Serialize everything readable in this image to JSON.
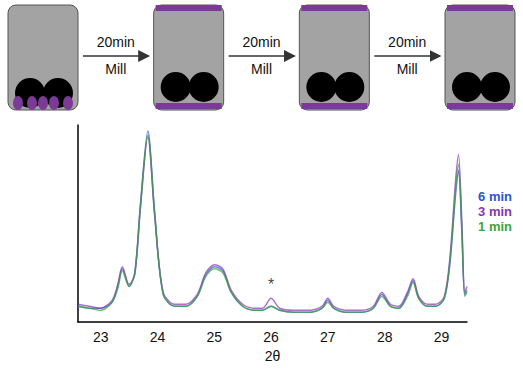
{
  "diagram": {
    "steps": [
      {
        "time": "20min",
        "action": "Mill"
      },
      {
        "time": "20min",
        "action": "Mill"
      },
      {
        "time": "20min",
        "action": "Mill"
      }
    ]
  },
  "chart_data": {
    "type": "line",
    "x_label": "2θ",
    "x": [
      22.6,
      22.8,
      23.0,
      23.2,
      23.3,
      23.38,
      23.5,
      23.6,
      23.7,
      23.83,
      23.95,
      24.1,
      24.3,
      24.5,
      24.7,
      24.85,
      25.0,
      25.15,
      25.3,
      25.5,
      25.7,
      25.85,
      26.0,
      26.15,
      26.4,
      26.7,
      26.9,
      27.0,
      27.1,
      27.3,
      27.6,
      27.8,
      27.95,
      28.1,
      28.25,
      28.4,
      28.5,
      28.6,
      28.75,
      28.9,
      29.05,
      29.15,
      29.25,
      29.3,
      29.36,
      29.41,
      29.45
    ],
    "series": [
      {
        "name": "6 min",
        "color": "#2a56d0",
        "values": [
          8,
          7,
          7,
          10,
          18,
          27,
          18,
          25,
          60,
          97,
          55,
          14,
          8,
          8,
          13,
          24,
          28,
          26,
          15,
          8,
          6,
          6,
          8,
          6,
          5,
          5,
          7,
          11,
          7,
          5,
          5,
          7,
          14,
          8,
          7,
          14,
          21,
          12,
          8,
          8,
          12,
          30,
          65,
          77,
          45,
          14,
          16
        ]
      },
      {
        "name": "3 min",
        "color": "#8a35b0",
        "values": [
          9,
          8,
          7,
          11,
          19,
          28,
          19,
          24,
          58,
          94,
          54,
          15,
          9,
          9,
          14,
          25,
          29,
          27,
          16,
          9,
          7,
          7,
          12,
          7,
          6,
          6,
          8,
          12,
          8,
          6,
          6,
          8,
          15,
          9,
          8,
          15,
          22,
          13,
          9,
          9,
          13,
          33,
          72,
          85,
          50,
          15,
          18
        ]
      },
      {
        "name": "1 min",
        "color": "#3aa53a",
        "values": [
          8,
          7,
          6,
          10,
          17,
          26,
          18,
          25,
          59,
          95,
          56,
          14,
          8,
          8,
          13,
          23,
          27,
          25,
          15,
          8,
          6,
          6,
          8,
          6,
          5,
          5,
          7,
          10,
          7,
          5,
          5,
          7,
          13,
          8,
          7,
          13,
          20,
          12,
          8,
          8,
          12,
          31,
          68,
          80,
          47,
          13,
          15
        ]
      }
    ],
    "annotations": [
      {
        "text": "*",
        "x": 26.0,
        "y": 15
      }
    ],
    "xlim": [
      22.6,
      29.45
    ],
    "xticks": [
      23,
      24,
      25,
      26,
      27,
      28,
      29
    ],
    "ylim": [
      0,
      100
    ],
    "tick_labels": "x",
    "grid": false,
    "legend": "right"
  }
}
